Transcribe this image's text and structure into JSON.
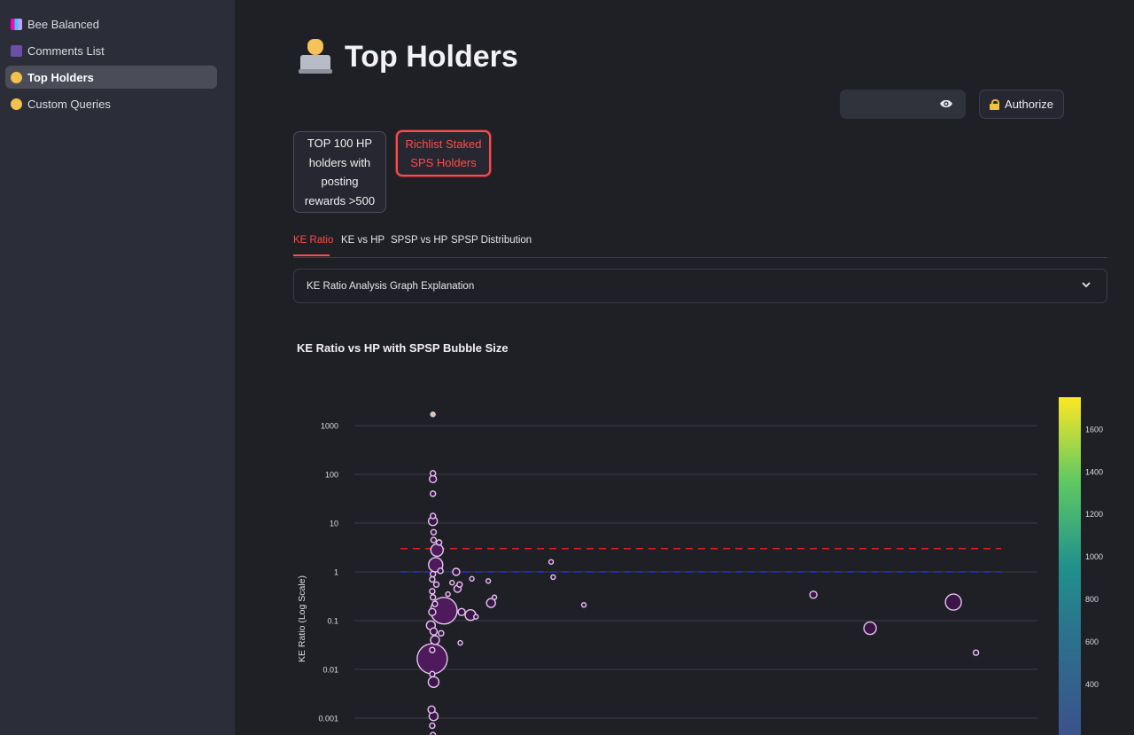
{
  "sidebar": {
    "items": [
      {
        "label": "Bee Balanced",
        "icon": "bar-chart-icon"
      },
      {
        "label": "Comments List",
        "icon": "comments-icon"
      },
      {
        "label": "Top Holders",
        "icon": "person-laptop-icon",
        "active": true
      },
      {
        "label": "Custom Queries",
        "icon": "person-laptop-icon"
      }
    ]
  },
  "header": {
    "title": "Top Holders",
    "title_icon": "person-laptop-icon"
  },
  "auth": {
    "password_value": "",
    "authorize_label": "Authorize"
  },
  "choices": [
    {
      "label": "TOP 100 HP holders with posting rewards >500",
      "lines": [
        "TOP 100 HP",
        "holders with",
        "posting",
        "rewards >500"
      ],
      "selected": false
    },
    {
      "label": "Richlist Staked SPS Holders",
      "lines": [
        "Richlist Staked",
        "SPS Holders"
      ],
      "selected": true
    }
  ],
  "tabs": [
    {
      "label": "KE Ratio",
      "active": true
    },
    {
      "label": "KE vs HP",
      "active": false
    },
    {
      "label": "SPSP vs HP",
      "active": false
    },
    {
      "label": "SPSP Distribution",
      "active": false
    }
  ],
  "expander": {
    "label": "KE Ratio Analysis Graph Explanation"
  },
  "chart_data": {
    "type": "scatter",
    "title": "KE Ratio vs HP with SPSP Bubble Size",
    "ylabel": "KE Ratio (Log Scale)",
    "xlabel": "",
    "y_scale": "log",
    "y_ticks": [
      "1000",
      "100",
      "10",
      "1",
      "0.1",
      "0.01",
      "0.001"
    ],
    "colorbar": {
      "ticks": [
        "1600",
        "1400",
        "1200",
        "1000",
        "800",
        "600",
        "400"
      ],
      "range": [
        300,
        1700
      ],
      "colors": [
        "#440154",
        "#3b528b",
        "#21918c",
        "#5ec962",
        "#fde725"
      ]
    },
    "reference_lines": [
      {
        "y": 3,
        "color": "#e02020",
        "style": "dashed"
      },
      {
        "y": 1,
        "color": "#2030e0",
        "style": "dashed"
      }
    ],
    "x_range": [
      0,
      1
    ],
    "points": [
      {
        "x": 0.115,
        "y": 1700,
        "r": 2.5,
        "c": "#d8c98a"
      },
      {
        "x": 0.115,
        "y": 105,
        "r": 3
      },
      {
        "x": 0.115,
        "y": 80,
        "r": 4
      },
      {
        "x": 0.115,
        "y": 40,
        "r": 3
      },
      {
        "x": 0.115,
        "y": 14,
        "r": 3
      },
      {
        "x": 0.115,
        "y": 11,
        "r": 5
      },
      {
        "x": 0.116,
        "y": 6.5,
        "r": 3
      },
      {
        "x": 0.116,
        "y": 4.5,
        "r": 3
      },
      {
        "x": 0.124,
        "y": 4,
        "r": 3
      },
      {
        "x": 0.121,
        "y": 2.8,
        "r": 7,
        "c": "#4e1a5c"
      },
      {
        "x": 0.119,
        "y": 1.4,
        "r": 8,
        "c": "#4e1a5c"
      },
      {
        "x": 0.115,
        "y": 0.9,
        "r": 3
      },
      {
        "x": 0.114,
        "y": 0.7,
        "r": 3
      },
      {
        "x": 0.12,
        "y": 0.55,
        "r": 3
      },
      {
        "x": 0.114,
        "y": 0.4,
        "r": 3
      },
      {
        "x": 0.115,
        "y": 0.3,
        "r": 3
      },
      {
        "x": 0.118,
        "y": 0.22,
        "r": 3
      },
      {
        "x": 0.114,
        "y": 0.15,
        "r": 4
      },
      {
        "x": 0.112,
        "y": 0.08,
        "r": 5
      },
      {
        "x": 0.116,
        "y": 0.06,
        "r": 4
      },
      {
        "x": 0.118,
        "y": 0.04,
        "r": 5
      },
      {
        "x": 0.114,
        "y": 0.025,
        "r": 3
      },
      {
        "x": 0.114,
        "y": 0.0165,
        "r": 17,
        "c": "#4e1a5c"
      },
      {
        "x": 0.114,
        "y": 0.008,
        "r": 3
      },
      {
        "x": 0.116,
        "y": 0.0055,
        "r": 6
      },
      {
        "x": 0.113,
        "y": 0.0015,
        "r": 4
      },
      {
        "x": 0.116,
        "y": 0.0011,
        "r": 5
      },
      {
        "x": 0.114,
        "y": 0.0007,
        "r": 3
      },
      {
        "x": 0.115,
        "y": 0.00045,
        "r": 3
      },
      {
        "x": 0.126,
        "y": 1.05,
        "r": 3
      },
      {
        "x": 0.149,
        "y": 1.0,
        "r": 4
      },
      {
        "x": 0.172,
        "y": 0.72,
        "r": 2.5
      },
      {
        "x": 0.196,
        "y": 0.65,
        "r": 2.5
      },
      {
        "x": 0.143,
        "y": 0.6,
        "r": 2.5
      },
      {
        "x": 0.154,
        "y": 0.55,
        "r": 3
      },
      {
        "x": 0.151,
        "y": 0.45,
        "r": 4
      },
      {
        "x": 0.137,
        "y": 0.35,
        "r": 2.5
      },
      {
        "x": 0.131,
        "y": 0.16,
        "r": 15,
        "c": "#4e1a5c"
      },
      {
        "x": 0.157,
        "y": 0.15,
        "r": 4
      },
      {
        "x": 0.17,
        "y": 0.13,
        "r": 6
      },
      {
        "x": 0.178,
        "y": 0.12,
        "r": 2.5
      },
      {
        "x": 0.205,
        "y": 0.3,
        "r": 2.5
      },
      {
        "x": 0.2,
        "y": 0.23,
        "r": 5
      },
      {
        "x": 0.155,
        "y": 0.035,
        "r": 2.5
      },
      {
        "x": 0.127,
        "y": 0.055,
        "r": 3
      },
      {
        "x": 0.288,
        "y": 1.6,
        "r": 2.5
      },
      {
        "x": 0.291,
        "y": 0.78,
        "r": 2.5
      },
      {
        "x": 0.336,
        "y": 0.21,
        "r": 2.5
      },
      {
        "x": 0.672,
        "y": 0.34,
        "r": 4
      },
      {
        "x": 0.755,
        "y": 0.07,
        "r": 7
      },
      {
        "x": 0.877,
        "y": 0.24,
        "r": 9
      },
      {
        "x": 0.91,
        "y": 0.022,
        "r": 3
      }
    ]
  }
}
